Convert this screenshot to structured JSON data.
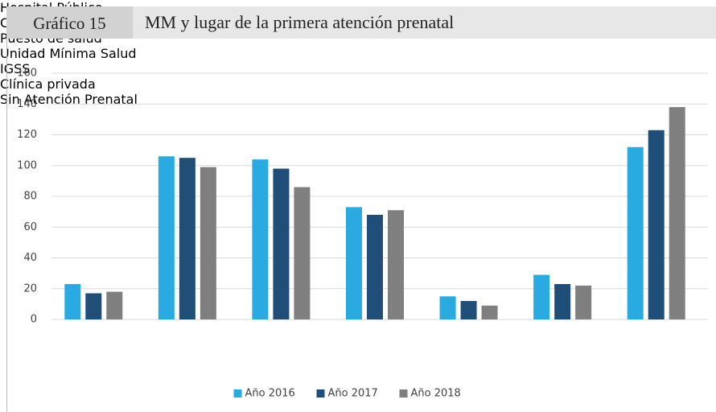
{
  "chart_data": {
    "type": "bar",
    "figure_label": "Gráfico 15",
    "title": "MM y lugar de la primera atención prenatal",
    "categories": [
      "Hospital\nPúblico",
      "CAIMI/CAP/CS",
      "Puesto de\nsalud",
      "Unidad\nMínima Salud",
      "IGSS",
      "Clínica privada",
      "Sin Atención\nPrenatal"
    ],
    "series": [
      {
        "name": "Año 2016",
        "color": "#29abe2",
        "values": [
          23,
          106,
          104,
          73,
          15,
          29,
          112
        ]
      },
      {
        "name": "Año 2017",
        "color": "#1f4e79",
        "values": [
          17,
          105,
          98,
          68,
          12,
          23,
          123
        ]
      },
      {
        "name": "Año 2018",
        "color": "#7f7f7f",
        "values": [
          18,
          99,
          86,
          71,
          9,
          22,
          138
        ]
      }
    ],
    "ylim": [
      0,
      160
    ],
    "yticks": [
      0,
      20,
      40,
      60,
      80,
      100,
      120,
      140,
      160
    ],
    "grid": true,
    "legend": "bottom"
  }
}
